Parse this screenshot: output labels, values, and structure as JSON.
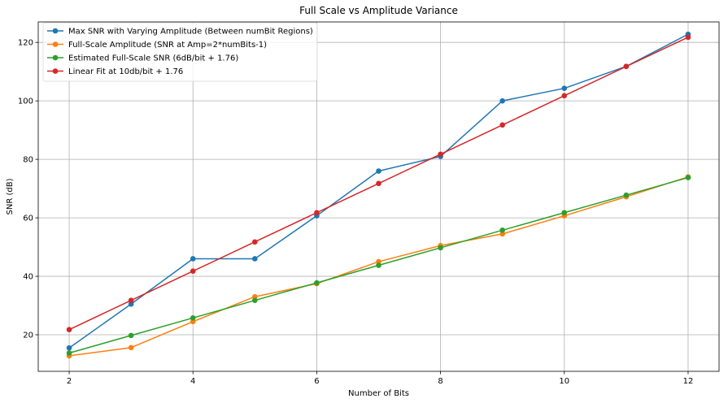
{
  "chart_data": {
    "type": "line",
    "title": "Full Scale vs Amplitude Variance",
    "xlabel": "Number of Bits",
    "ylabel": "SNR (dB)",
    "x": [
      2,
      3,
      4,
      5,
      6,
      7,
      8,
      9,
      10,
      11,
      12
    ],
    "xlim": [
      1.5,
      12.5
    ],
    "ylim": [
      7.5,
      127
    ],
    "xticks": [
      2,
      4,
      6,
      8,
      10,
      12
    ],
    "yticks": [
      20,
      40,
      60,
      80,
      100,
      120
    ],
    "grid": true,
    "legend_position": "top-left",
    "series": [
      {
        "name": "Max SNR with Varying Amplitude (Between numBit Regions)",
        "color": "#1f77b4",
        "values": [
          15.5,
          30.5,
          46,
          46,
          60.7,
          76,
          81,
          100,
          104.3,
          111.8,
          122.8
        ]
      },
      {
        "name": "Full-Scale Amplitude (SNR at Amp=2*numBits-1)",
        "color": "#ff7f0e",
        "values": [
          12.8,
          15.6,
          24.5,
          33,
          37.5,
          45,
          50.5,
          54.5,
          60.7,
          67.2,
          74
        ]
      },
      {
        "name": "Estimated Full-Scale SNR (6dB/bit + 1.76)",
        "color": "#2ca02c",
        "values": [
          13.76,
          19.76,
          25.76,
          31.76,
          37.76,
          43.76,
          49.76,
          55.76,
          61.76,
          67.76,
          73.76
        ]
      },
      {
        "name": "Linear Fit at 10db/bit + 1.76",
        "color": "#d62728",
        "values": [
          21.76,
          31.76,
          41.76,
          51.76,
          61.76,
          71.76,
          81.76,
          91.76,
          101.76,
          111.76,
          121.76
        ]
      }
    ]
  }
}
